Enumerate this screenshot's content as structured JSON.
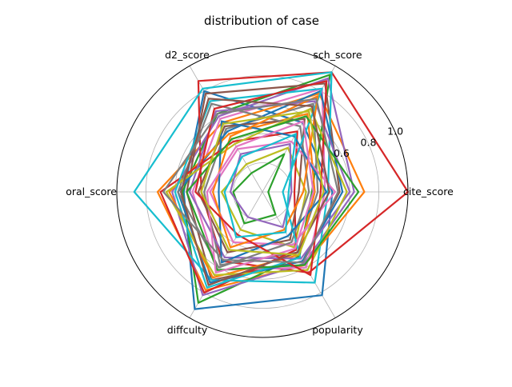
{
  "chart_data": {
    "type": "radar",
    "title": "distribution of case",
    "axes": [
      "cite_score",
      "sch_score",
      "d2_score",
      "oral_score",
      "diffculty",
      "popularity"
    ],
    "r_ticks": [
      0.2,
      0.4,
      0.6,
      0.8,
      1.0
    ],
    "r_tick_labels": [
      "",
      "",
      "0.6",
      "0.8",
      "1.0"
    ],
    "r_range": [
      0,
      1.0
    ],
    "grid": true,
    "legend": "none",
    "colors": [
      "#1f77b4",
      "#ff7f0e",
      "#2ca02c",
      "#d62728",
      "#9467bd",
      "#8c564b",
      "#e377c2",
      "#7f7f7f",
      "#bcbd22",
      "#17becf"
    ],
    "series": [
      {
        "values": [
          0.48,
          0.55,
          0.8,
          0.54,
          0.93,
          0.82
        ]
      },
      {
        "values": [
          0.7,
          0.78,
          0.55,
          0.72,
          0.78,
          0.58
        ]
      },
      {
        "values": [
          0.34,
          0.93,
          0.62,
          0.55,
          0.88,
          0.51
        ]
      },
      {
        "values": [
          1.0,
          0.95,
          0.88,
          0.42,
          0.55,
          0.64
        ]
      },
      {
        "values": [
          0.63,
          0.9,
          0.6,
          0.62,
          0.82,
          0.57
        ]
      },
      {
        "values": [
          0.53,
          0.86,
          0.78,
          0.52,
          0.7,
          0.55
        ]
      },
      {
        "values": [
          0.43,
          0.82,
          0.58,
          0.48,
          0.62,
          0.6
        ]
      },
      {
        "values": [
          0.38,
          0.7,
          0.5,
          0.4,
          0.58,
          0.48
        ]
      },
      {
        "values": [
          0.3,
          0.35,
          0.22,
          0.28,
          0.3,
          0.44
        ]
      },
      {
        "values": [
          0.45,
          0.95,
          0.82,
          0.88,
          0.7,
          0.72
        ]
      },
      {
        "values": [
          0.55,
          0.8,
          0.48,
          0.58,
          0.72,
          0.55
        ]
      },
      {
        "values": [
          0.36,
          0.62,
          0.46,
          0.64,
          0.68,
          0.5
        ]
      },
      {
        "values": [
          0.04,
          0.3,
          0.15,
          0.2,
          0.25,
          0.18
        ]
      },
      {
        "values": [
          0.22,
          0.48,
          0.4,
          0.7,
          0.8,
          0.46
        ]
      },
      {
        "values": [
          0.6,
          0.72,
          0.64,
          0.5,
          0.52,
          0.53
        ]
      },
      {
        "values": [
          0.25,
          0.58,
          0.52,
          0.44,
          0.48,
          0.38
        ]
      },
      {
        "values": [
          0.5,
          0.4,
          0.34,
          0.36,
          0.4,
          0.42
        ]
      },
      {
        "values": [
          0.32,
          0.52,
          0.7,
          0.58,
          0.6,
          0.4
        ]
      },
      {
        "values": [
          0.58,
          0.66,
          0.38,
          0.66,
          0.66,
          0.62
        ]
      },
      {
        "values": [
          0.14,
          0.82,
          0.72,
          0.6,
          0.76,
          0.52
        ]
      },
      {
        "values": [
          0.44,
          0.44,
          0.56,
          0.3,
          0.56,
          0.35
        ]
      },
      {
        "values": [
          0.28,
          0.76,
          0.44,
          0.34,
          0.44,
          0.3
        ]
      },
      {
        "values": [
          0.66,
          0.6,
          0.42,
          0.52,
          0.62,
          0.58
        ]
      },
      {
        "values": [
          0.4,
          0.88,
          0.66,
          0.46,
          0.34,
          0.66
        ]
      },
      {
        "values": [
          0.2,
          0.38,
          0.3,
          0.22,
          0.2,
          0.28
        ]
      },
      {
        "values": [
          0.46,
          0.68,
          0.74,
          0.56,
          0.74,
          0.48
        ]
      },
      {
        "values": [
          0.35,
          0.56,
          0.36,
          0.38,
          0.64,
          0.45
        ]
      },
      {
        "values": [
          0.52,
          0.74,
          0.62,
          0.68,
          0.54,
          0.56
        ]
      },
      {
        "values": [
          0.42,
          0.64,
          0.54,
          0.42,
          0.46,
          0.5
        ]
      },
      {
        "values": [
          0.18,
          0.46,
          0.28,
          0.26,
          0.36,
          0.32
        ]
      }
    ]
  }
}
